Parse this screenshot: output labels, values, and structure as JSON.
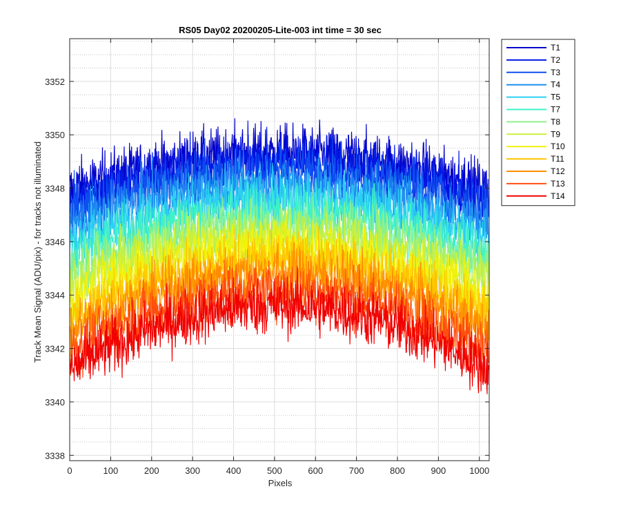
{
  "chart_data": {
    "type": "line",
    "title": "RS05 Day02 20200205-Lite-003 int time = 30 sec",
    "xlabel": "Pixels",
    "ylabel": "Track Mean Signal (ADU/pix) - for tracks not illuminated",
    "xlim": [
      0,
      1024
    ],
    "ylim": [
      3337.8,
      3353.6
    ],
    "x_ticks": [
      0,
      100,
      200,
      300,
      400,
      500,
      600,
      700,
      800,
      900,
      1000
    ],
    "y_ticks": [
      3338,
      3340,
      3342,
      3344,
      3346,
      3348,
      3350,
      3352
    ],
    "y_minor_step": 0.5,
    "grid": true,
    "minor_grid": "dotted",
    "legend_position": "outside-top-right",
    "x_points": 1024,
    "noise_amplitude": 1.2,
    "series": [
      {
        "name": "T1",
        "color": "#0000c8",
        "center_level": 3349.3,
        "edge_level": 3347.9
      },
      {
        "name": "T2",
        "color": "#0018e6",
        "center_level": 3349.0,
        "edge_level": 3347.5
      },
      {
        "name": "T3",
        "color": "#0f4ff0",
        "center_level": 3348.6,
        "edge_level": 3347.1
      },
      {
        "name": "T4",
        "color": "#1f8ff0",
        "center_level": 3348.1,
        "edge_level": 3346.6
      },
      {
        "name": "T5",
        "color": "#2ccff2",
        "center_level": 3347.6,
        "edge_level": 3346.0
      },
      {
        "name": "T7",
        "color": "#3ff2c8",
        "center_level": 3347.1,
        "edge_level": 3345.4
      },
      {
        "name": "T8",
        "color": "#8ff08a",
        "center_level": 3346.7,
        "edge_level": 3344.9
      },
      {
        "name": "T9",
        "color": "#c8f040",
        "center_level": 3346.2,
        "edge_level": 3344.4
      },
      {
        "name": "T10",
        "color": "#f2f20a",
        "center_level": 3345.8,
        "edge_level": 3343.8
      },
      {
        "name": "T11",
        "color": "#ffc400",
        "center_level": 3345.3,
        "edge_level": 3343.2
      },
      {
        "name": "T12",
        "color": "#ff8c00",
        "center_level": 3344.8,
        "edge_level": 3342.6
      },
      {
        "name": "T13",
        "color": "#ff4d0f",
        "center_level": 3344.2,
        "edge_level": 3341.9
      },
      {
        "name": "T14",
        "color": "#f00000",
        "center_level": 3343.6,
        "edge_level": 3341.2
      }
    ]
  }
}
